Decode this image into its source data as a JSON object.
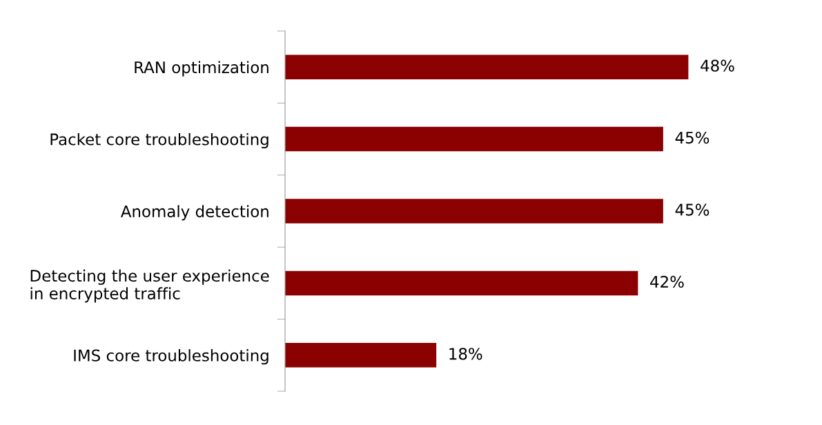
{
  "chart_data": {
    "type": "bar",
    "orientation": "horizontal",
    "categories": [
      "RAN optimization",
      "Packet core troubleshooting",
      "Anomaly detection",
      "Detecting the user experience\nin encrypted traffic",
      "IMS core troubleshooting"
    ],
    "values": [
      48,
      45,
      45,
      42,
      18
    ],
    "value_labels": [
      "48%",
      "45%",
      "45%",
      "42%",
      "18%"
    ],
    "color": "#8b0000"
  }
}
